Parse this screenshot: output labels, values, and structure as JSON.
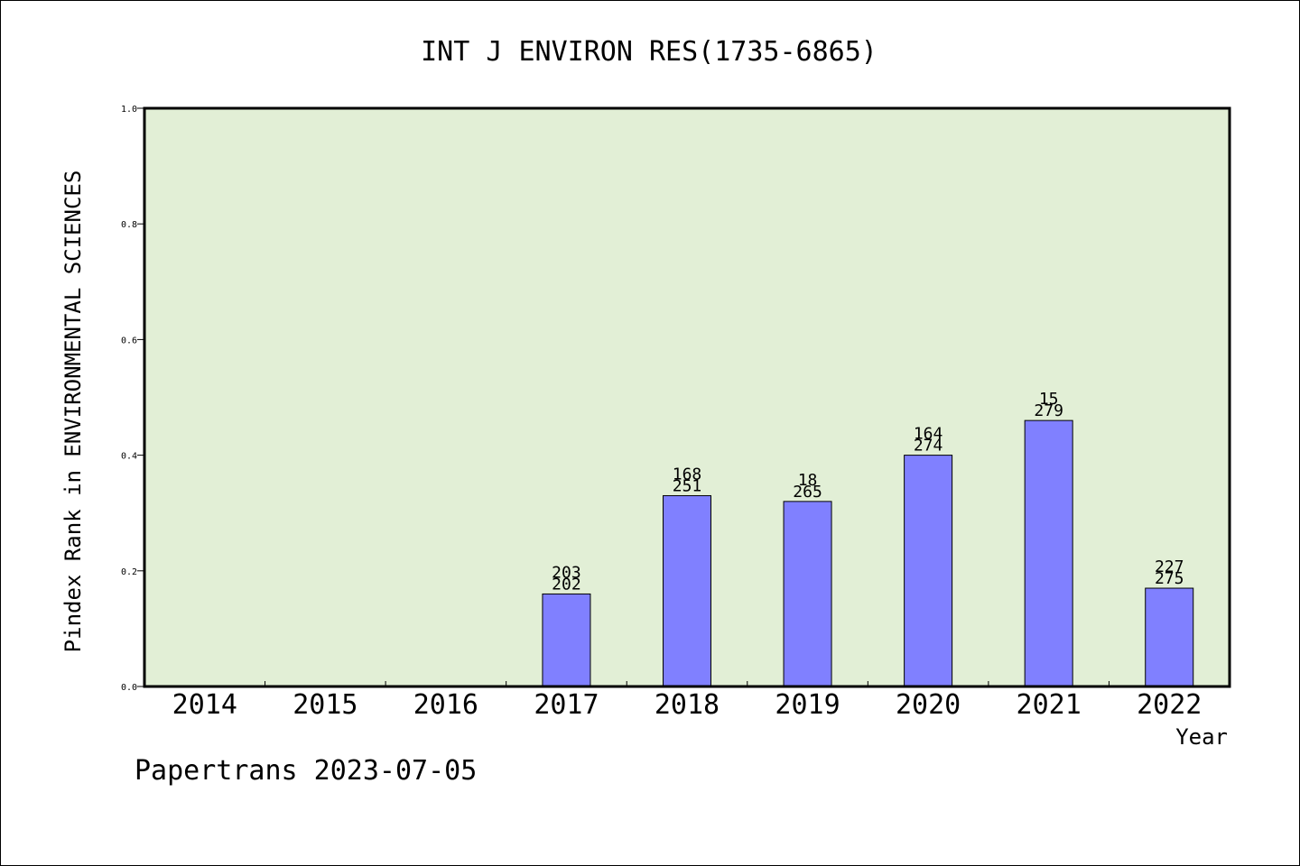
{
  "chart_data": {
    "type": "bar",
    "title": "INT J ENVIRON RES(1735-6865)",
    "ylabel": "Pindex Rank in ENVIRONMENTAL SCIENCES",
    "xlabel": "Year",
    "ylim": [
      0.0,
      1.0
    ],
    "yticks": [
      "0.0",
      "0.2",
      "0.4",
      "0.6",
      "0.8",
      "1.0"
    ],
    "categories": [
      "2014",
      "2015",
      "2016",
      "2017",
      "2018",
      "2019",
      "2020",
      "2021",
      "2022"
    ],
    "values": [
      null,
      null,
      null,
      0.16,
      0.33,
      0.32,
      0.4,
      0.46,
      0.17
    ],
    "labels_top": [
      null,
      null,
      null,
      "203",
      "168",
      "18",
      "164",
      "15",
      "227"
    ],
    "labels_bottom": [
      null,
      null,
      null,
      "202",
      "251",
      "265",
      "274",
      "279",
      "275"
    ],
    "grid": false,
    "colors": {
      "plot_background": "#e2efd6",
      "bar_fill": "#8080ff",
      "bar_stroke": "#000000"
    }
  },
  "footer": "Papertrans 2023-07-05"
}
